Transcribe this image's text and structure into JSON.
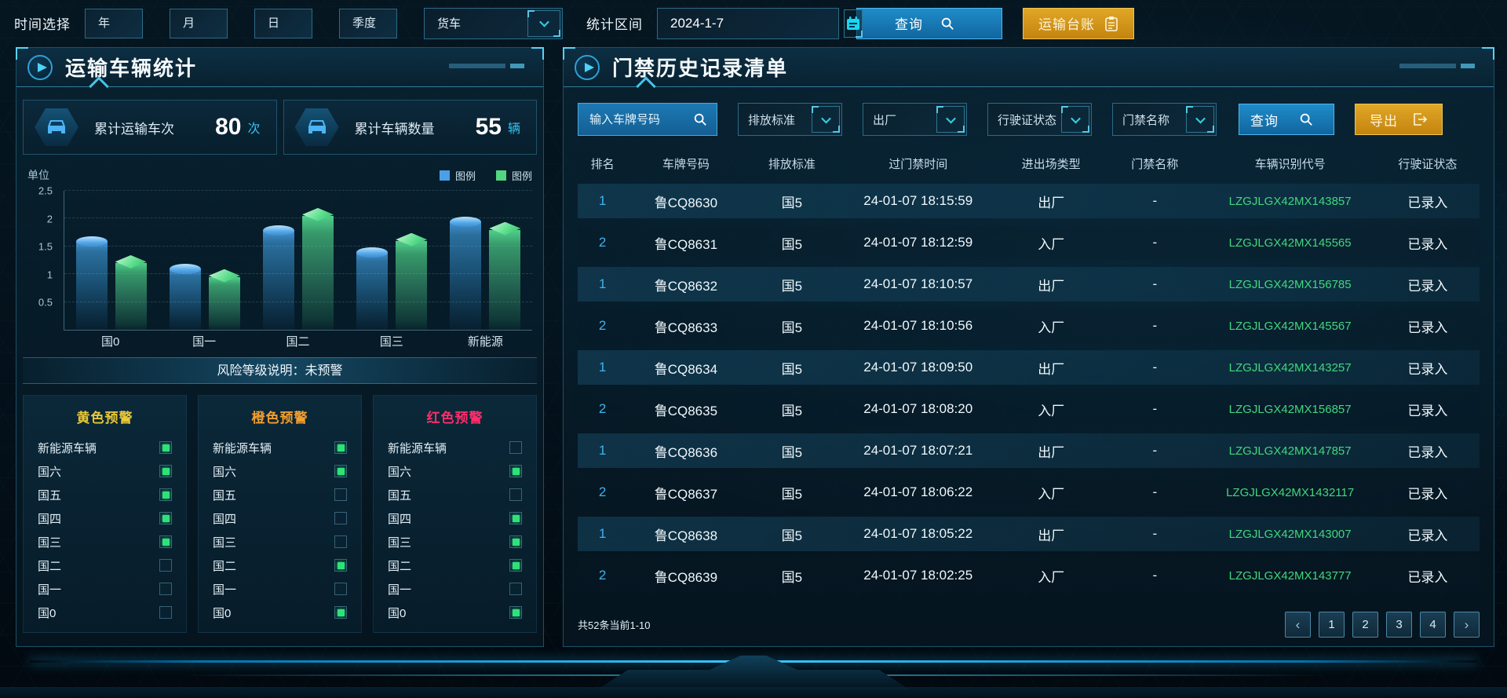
{
  "topbar": {
    "time_label": "时间选择",
    "time_buttons": [
      "年",
      "月",
      "日",
      "季度"
    ],
    "vehicle_type": "货车",
    "range_label": "统计区间",
    "date_value": "2024-1-7",
    "query_label": "查询",
    "ledger_label": "运输台账"
  },
  "left_panel": {
    "title": "运输车辆统计",
    "stats": [
      {
        "label": "累计运输车次",
        "value": "80",
        "unit": "次"
      },
      {
        "label": "累计车辆数量",
        "value": "55",
        "unit": "辆"
      }
    ],
    "risk_banner": "风险等级说明：未预警",
    "warning_panels": [
      {
        "title": "黄色预警",
        "color": "#e9c838",
        "items": [
          {
            "label": "新能源车辆",
            "checked": true
          },
          {
            "label": "国六",
            "checked": true
          },
          {
            "label": "国五",
            "checked": true
          },
          {
            "label": "国四",
            "checked": true
          },
          {
            "label": "国三",
            "checked": true
          },
          {
            "label": "国二",
            "checked": false
          },
          {
            "label": "国一",
            "checked": false
          },
          {
            "label": "国0",
            "checked": false
          }
        ]
      },
      {
        "title": "橙色预警",
        "color": "#f29e2e",
        "items": [
          {
            "label": "新能源车辆",
            "checked": true
          },
          {
            "label": "国六",
            "checked": true
          },
          {
            "label": "国五",
            "checked": false
          },
          {
            "label": "国四",
            "checked": false
          },
          {
            "label": "国三",
            "checked": false
          },
          {
            "label": "国二",
            "checked": true
          },
          {
            "label": "国一",
            "checked": false
          },
          {
            "label": "国0",
            "checked": true
          }
        ]
      },
      {
        "title": "红色预警",
        "color": "#ff2d6b",
        "items": [
          {
            "label": "新能源车辆",
            "checked": false
          },
          {
            "label": "国六",
            "checked": true
          },
          {
            "label": "国五",
            "checked": false
          },
          {
            "label": "国四",
            "checked": true
          },
          {
            "label": "国三",
            "checked": true
          },
          {
            "label": "国二",
            "checked": true
          },
          {
            "label": "国一",
            "checked": false
          },
          {
            "label": "国0",
            "checked": true
          }
        ]
      }
    ]
  },
  "chart_data": {
    "type": "bar",
    "title": "",
    "unit_label": "单位",
    "categories": [
      "国0",
      "国一",
      "国二",
      "国三",
      "新能源"
    ],
    "series": [
      {
        "name": "图例",
        "color": "#4aa0e8",
        "values": [
          1.6,
          1.1,
          1.8,
          1.4,
          1.95
        ]
      },
      {
        "name": "图例",
        "color": "#52d67f",
        "values": [
          1.2,
          0.95,
          2.05,
          1.6,
          1.8
        ]
      }
    ],
    "xlabel": "",
    "ylabel": "单位",
    "ylim": [
      0,
      2.5
    ],
    "yticks": [
      0.5,
      1,
      1.5,
      2,
      2.5
    ],
    "grid": true,
    "legend_position": "top-right"
  },
  "right_panel": {
    "title": "门禁历史记录清单",
    "search_placeholder": "输入车牌号码",
    "dropdowns": [
      "排放标准",
      "出厂",
      "行驶证状态",
      "门禁名称"
    ],
    "query_label": "查询",
    "export_label": "导出",
    "table": {
      "headers": [
        "排名",
        "车牌号码",
        "排放标准",
        "过门禁时间",
        "进出场类型",
        "门禁名称",
        "车辆识别代号",
        "行驶证状态"
      ],
      "rows": [
        [
          "1",
          "鲁CQ8630",
          "国5",
          "24-01-07 18:15:59",
          "出厂",
          "-",
          "LZGJLGX42MX143857",
          "已录入"
        ],
        [
          "2",
          "鲁CQ8631",
          "国5",
          "24-01-07 18:12:59",
          "入厂",
          "-",
          "LZGJLGX42MX145565",
          "已录入"
        ],
        [
          "1",
          "鲁CQ8632",
          "国5",
          "24-01-07 18:10:57",
          "出厂",
          "-",
          "LZGJLGX42MX156785",
          "已录入"
        ],
        [
          "2",
          "鲁CQ8633",
          "国5",
          "24-01-07 18:10:56",
          "入厂",
          "-",
          "LZGJLGX42MX145567",
          "已录入"
        ],
        [
          "1",
          "鲁CQ8634",
          "国5",
          "24-01-07 18:09:50",
          "出厂",
          "-",
          "LZGJLGX42MX143257",
          "已录入"
        ],
        [
          "2",
          "鲁CQ8635",
          "国5",
          "24-01-07 18:08:20",
          "入厂",
          "-",
          "LZGJLGX42MX156857",
          "已录入"
        ],
        [
          "1",
          "鲁CQ8636",
          "国5",
          "24-01-07 18:07:21",
          "出厂",
          "-",
          "LZGJLGX42MX147857",
          "已录入"
        ],
        [
          "2",
          "鲁CQ8637",
          "国5",
          "24-01-07 18:06:22",
          "入厂",
          "-",
          "LZGJLGX42MX1432117",
          "已录入"
        ],
        [
          "1",
          "鲁CQ8638",
          "国5",
          "24-01-07 18:05:22",
          "出厂",
          "-",
          "LZGJLGX42MX143007",
          "已录入"
        ],
        [
          "2",
          "鲁CQ8639",
          "国5",
          "24-01-07 18:02:25",
          "入厂",
          "-",
          "LZGJLGX42MX143777",
          "已录入"
        ]
      ]
    },
    "footer": {
      "count_text": "共52条当前1-10",
      "prev": "‹",
      "next": "›",
      "pages": [
        "1",
        "2",
        "3",
        "4"
      ]
    }
  },
  "colors": {
    "accent_cyan": "#35c8ff",
    "button_blue": "#1f8cc9",
    "button_gold": "#d99a16",
    "vin_green": "#41d77d",
    "rank_blue": "#3fb2f0",
    "warn_yellow": "#e9c838",
    "warn_orange": "#f29e2e",
    "warn_red": "#ff2d6b"
  }
}
